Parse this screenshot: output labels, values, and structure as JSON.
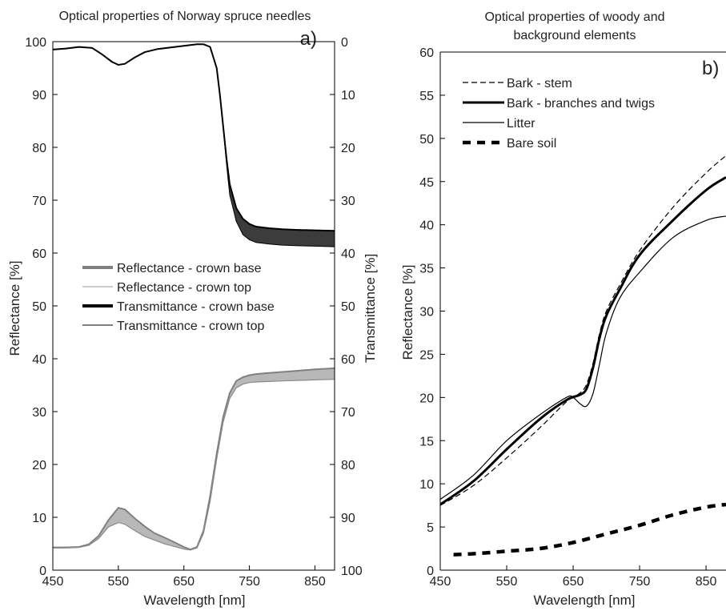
{
  "chart_data": [
    {
      "type": "area",
      "title": "Optical properties of Norway spruce needles",
      "panel_label": "a)",
      "xlabel": "Wavelength [nm]",
      "ylabel": "Reflectance [%]",
      "y2label": "Transmittance [%]",
      "xlim": [
        450,
        880
      ],
      "ylim": [
        0,
        100
      ],
      "y2lim": [
        100,
        0
      ],
      "y2_inverted": true,
      "x_ticks": [
        "450",
        "550",
        "650",
        "750",
        "850"
      ],
      "y_ticks": [
        "0",
        "10",
        "20",
        "30",
        "40",
        "50",
        "60",
        "70",
        "80",
        "90",
        "100"
      ],
      "y2_ticks": [
        "0",
        "10",
        "20",
        "30",
        "40",
        "50",
        "60",
        "70",
        "80",
        "90",
        "100"
      ],
      "grid": false,
      "legend_position": "center-left",
      "legend": [
        {
          "name": "Reflectance - crown base",
          "color": "#808080",
          "width": 4
        },
        {
          "name": "Reflectance - crown top",
          "color": "#9a9a9a",
          "width": 1
        },
        {
          "name": "Transmittance - crown base",
          "color": "#000000",
          "width": 4
        },
        {
          "name": "Transmittance - crown top",
          "color": "#000000",
          "width": 1
        }
      ],
      "series": [
        {
          "name": "Reflectance - crown base",
          "axis": "left",
          "color": "#808080",
          "x": [
            450,
            470,
            490,
            505,
            520,
            535,
            550,
            560,
            575,
            590,
            605,
            620,
            635,
            650,
            660,
            670,
            680,
            690,
            700,
            710,
            720,
            730,
            740,
            750,
            760,
            780,
            800,
            820,
            850,
            880
          ],
          "y": [
            4.3,
            4.3,
            4.4,
            4.9,
            6.5,
            9.5,
            11.8,
            11.5,
            9.8,
            8.3,
            7.0,
            6.2,
            5.3,
            4.4,
            3.9,
            4.4,
            7.5,
            14,
            22,
            29,
            33.5,
            35.8,
            36.5,
            36.9,
            37.1,
            37.3,
            37.5,
            37.7,
            38.0,
            38.2
          ]
        },
        {
          "name": "Reflectance - crown top",
          "axis": "left",
          "color": "#9a9a9a",
          "x": [
            450,
            470,
            490,
            505,
            520,
            535,
            550,
            560,
            575,
            590,
            605,
            620,
            635,
            650,
            660,
            670,
            680,
            690,
            700,
            710,
            720,
            730,
            740,
            750,
            760,
            780,
            800,
            820,
            850,
            880
          ],
          "y": [
            4.2,
            4.2,
            4.3,
            4.7,
            6.0,
            8.2,
            9.0,
            8.7,
            7.5,
            6.4,
            5.7,
            5.0,
            4.5,
            4.0,
            3.8,
            4.2,
            7.0,
            13,
            21,
            28,
            32.5,
            34.5,
            35.2,
            35.5,
            35.6,
            35.7,
            35.8,
            35.9,
            36.0,
            36.1
          ]
        },
        {
          "name": "Transmittance - crown base",
          "axis": "right",
          "color": "#000000",
          "x": [
            450,
            470,
            490,
            510,
            525,
            540,
            550,
            560,
            575,
            590,
            610,
            630,
            650,
            670,
            680,
            690,
            700,
            705,
            710,
            715,
            720,
            730,
            740,
            750,
            760,
            780,
            800,
            820,
            850,
            880
          ],
          "y": [
            1.5,
            1.3,
            1.0,
            1.2,
            2.4,
            3.8,
            4.4,
            4.2,
            3.0,
            2.0,
            1.4,
            1.1,
            0.8,
            0.5,
            0.5,
            1.0,
            5.0,
            10.0,
            16.0,
            22.0,
            27.0,
            31.5,
            33.5,
            34.5,
            35.0,
            35.3,
            35.5,
            35.6,
            35.7,
            35.8
          ]
        },
        {
          "name": "Transmittance - crown top",
          "axis": "right",
          "color": "#000000",
          "x": [
            450,
            470,
            490,
            510,
            525,
            540,
            550,
            560,
            575,
            590,
            610,
            630,
            650,
            670,
            680,
            690,
            700,
            705,
            710,
            715,
            720,
            730,
            740,
            750,
            760,
            780,
            800,
            820,
            850,
            880
          ],
          "y": [
            1.5,
            1.3,
            1.0,
            1.2,
            2.4,
            3.8,
            4.4,
            4.2,
            3.0,
            2.0,
            1.4,
            1.1,
            0.8,
            0.5,
            0.5,
            1.0,
            5.0,
            10.0,
            16.0,
            23.0,
            29.0,
            34.0,
            36.5,
            37.5,
            38.0,
            38.3,
            38.5,
            38.6,
            38.7,
            38.8
          ]
        }
      ]
    },
    {
      "type": "line",
      "title": "Optical properties of woody and background elements",
      "panel_label": "b)",
      "xlabel": "Wavelength [nm]",
      "ylabel": "Reflectance [%]",
      "xlim": [
        450,
        880
      ],
      "ylim": [
        0,
        60
      ],
      "x_ticks": [
        "450",
        "550",
        "650",
        "750",
        "850"
      ],
      "y_ticks": [
        "0",
        "5",
        "10",
        "15",
        "20",
        "25",
        "30",
        "35",
        "40",
        "45",
        "50",
        "55",
        "60"
      ],
      "grid": false,
      "legend_position": "top-left",
      "legend": [
        {
          "name": "Bark - stem",
          "style": "dashed-thin"
        },
        {
          "name": "Bark - branches and twigs",
          "style": "solid-thick"
        },
        {
          "name": "Litter",
          "style": "solid-thin"
        },
        {
          "name": "Bare soil",
          "style": "dashed-thick"
        }
      ],
      "series": [
        {
          "name": "Bark - stem",
          "style": "dashed-thin",
          "x": [
            450,
            500,
            550,
            600,
            640,
            660,
            670,
            680,
            690,
            700,
            720,
            750,
            800,
            850,
            880
          ],
          "y": [
            7.5,
            9.8,
            13.0,
            16.5,
            19.5,
            20.5,
            21.5,
            24.0,
            27.5,
            30.0,
            33.0,
            37.0,
            42.0,
            46.0,
            48.0
          ]
        },
        {
          "name": "Bark - branches and twigs",
          "style": "solid-thick",
          "x": [
            450,
            500,
            550,
            600,
            640,
            660,
            670,
            680,
            690,
            700,
            720,
            750,
            800,
            850,
            880
          ],
          "y": [
            7.6,
            10.3,
            14.0,
            17.5,
            19.7,
            20.3,
            21.0,
            23.5,
            27.0,
            29.5,
            32.5,
            36.5,
            40.5,
            44.0,
            45.5
          ]
        },
        {
          "name": "Litter",
          "style": "solid-thin",
          "x": [
            450,
            500,
            550,
            600,
            640,
            650,
            660,
            670,
            680,
            690,
            700,
            720,
            750,
            800,
            850,
            880
          ],
          "y": [
            8.2,
            11.0,
            15.0,
            18.0,
            20.0,
            20.0,
            19.3,
            19.0,
            20.5,
            24.0,
            27.5,
            31.5,
            34.5,
            38.5,
            40.5,
            41.0
          ]
        },
        {
          "name": "Bare soil",
          "style": "dashed-thick",
          "x": [
            470,
            500,
            550,
            600,
            650,
            700,
            750,
            800,
            850,
            880
          ],
          "y": [
            1.8,
            1.9,
            2.2,
            2.5,
            3.2,
            4.2,
            5.2,
            6.4,
            7.3,
            7.6
          ]
        }
      ]
    }
  ]
}
